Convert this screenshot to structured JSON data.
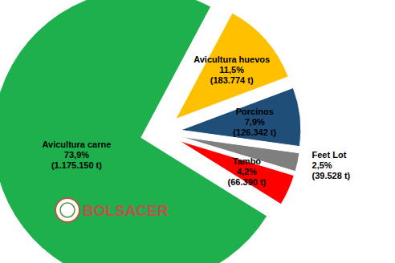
{
  "chart_data": {
    "type": "pie",
    "categories": [
      "Avicultura huevos",
      "Porcinos",
      "Feet Lot",
      "Tambo",
      "Avicultura carne"
    ],
    "values": [
      11.5,
      7.9,
      2.5,
      4.2,
      73.9
    ],
    "value_labels": [
      "11,5%",
      "7,9%",
      "2,5%",
      "4,2%",
      "73,9%"
    ],
    "sublabels": [
      "(183.774 t)",
      "(126.342 t)",
      "(39.528 t)",
      "(66.390 t)",
      "(1.175.150 t)"
    ],
    "colors": [
      "#ffc000",
      "#1f4e79",
      "#7f7f7f",
      "#ff0000",
      "#1db04c"
    ],
    "data_labels": true,
    "logo": "BOLSACER"
  }
}
